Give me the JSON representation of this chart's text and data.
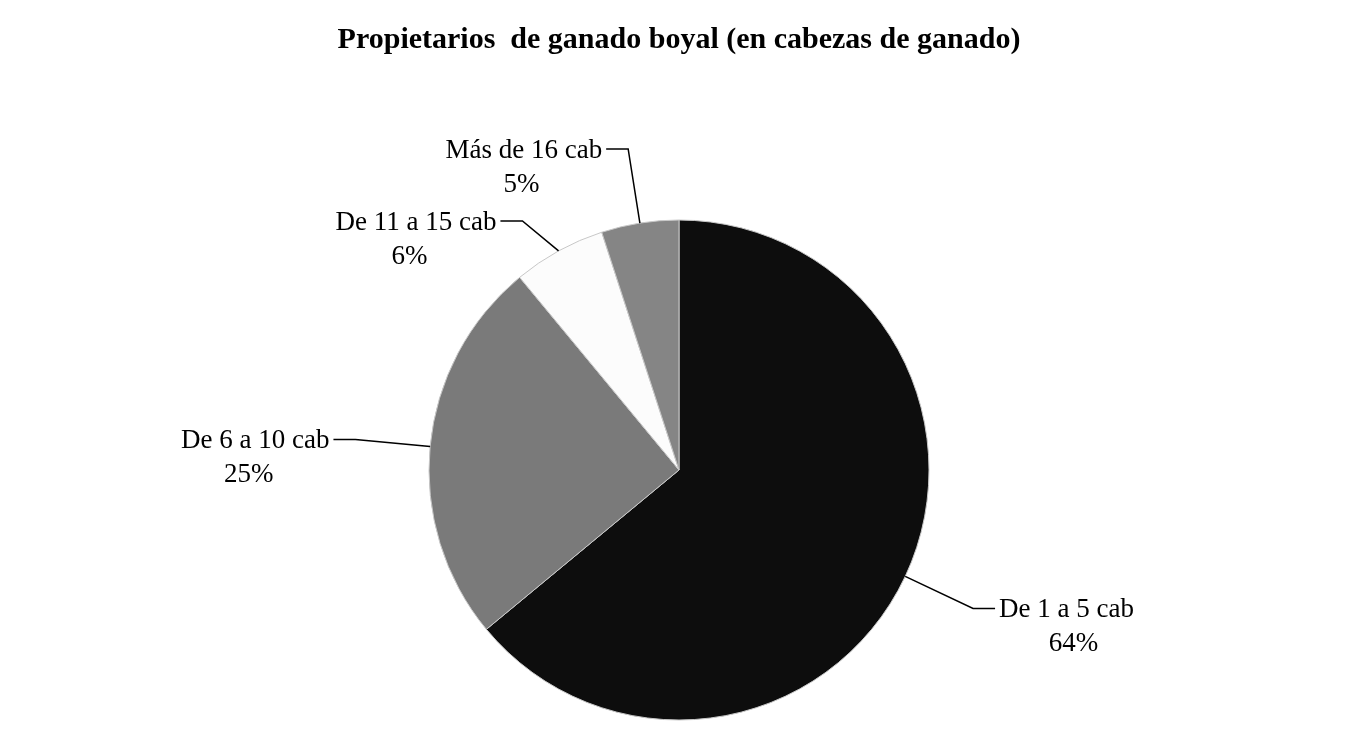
{
  "chart_data": {
    "type": "pie",
    "title": "Propietarios  de ganado boyal (en cabezas de ganado)",
    "categories": [
      "De 1 a 5 cab",
      "De 6 a 10 cab",
      "De 11 a 15 cab",
      "Más de 16 cab"
    ],
    "values": [
      64,
      25,
      6,
      5
    ],
    "colors": [
      "#0d0d0d",
      "#7a7a7a",
      "#fcfcfc",
      "#858585"
    ],
    "value_labels": [
      "64%",
      "25%",
      "6%",
      "5%"
    ]
  }
}
